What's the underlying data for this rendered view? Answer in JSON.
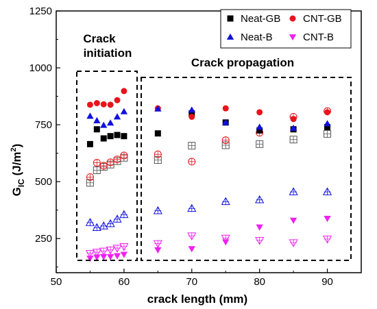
{
  "chart_data": {
    "type": "scatter",
    "xlabel": "crack length (mm)",
    "ylabel_main": "G",
    "ylabel_sub": "IC",
    "ylabel_unit": " (J/m",
    "ylabel_sup": "2",
    "ylabel_close": ")",
    "xlim": [
      50,
      95
    ],
    "ylim": [
      100,
      1250
    ],
    "xticks": [
      50,
      60,
      70,
      80,
      90
    ],
    "yticks": [
      250,
      500,
      750,
      1000,
      1250
    ],
    "grid": false,
    "legend_position": "top-right",
    "annotations": {
      "initiation_line1": "Crack",
      "initiation_line2": "initiation",
      "propagation": "Crack propagation"
    },
    "series": [
      {
        "name": "Neat-GB",
        "marker": "square",
        "filled": true,
        "color": "#000000",
        "x": [
          55,
          56,
          57,
          58,
          59,
          60,
          65,
          70,
          75,
          80,
          85,
          90
        ],
        "y": [
          665,
          730,
          690,
          700,
          705,
          700,
          712,
          800,
          760,
          725,
          730,
          740
        ]
      },
      {
        "name": "CNT-GB",
        "marker": "circle",
        "filled": true,
        "color": "#e8141c",
        "x": [
          55,
          56,
          57,
          58,
          59,
          60,
          65,
          70,
          75,
          80,
          85,
          90
        ],
        "y": [
          838,
          845,
          840,
          838,
          858,
          898,
          822,
          785,
          822,
          805,
          775,
          805
        ]
      },
      {
        "name": "Neat-B",
        "marker": "triangle-up",
        "filled": true,
        "color": "#1010e0",
        "x": [
          55,
          56,
          57,
          58,
          59,
          60,
          65,
          70,
          75,
          80,
          85,
          90
        ],
        "y": [
          788,
          768,
          748,
          758,
          785,
          808,
          820,
          815,
          760,
          740,
          735,
          755
        ]
      },
      {
        "name": "CNT-B",
        "marker": "triangle-down",
        "filled": true,
        "color": "#f020f0",
        "x": [
          55,
          56,
          57,
          58,
          59,
          60,
          65,
          70,
          75,
          80,
          85,
          90
        ],
        "y": [
          163,
          168,
          170,
          170,
          174,
          180,
          200,
          205,
          235,
          300,
          330,
          338
        ]
      },
      {
        "marker": "square",
        "filled": false,
        "color": "#555555",
        "x": [
          55,
          56,
          57,
          58,
          59,
          60,
          65,
          70,
          75,
          80,
          85,
          90
        ],
        "y": [
          495,
          550,
          565,
          575,
          590,
          605,
          595,
          658,
          660,
          665,
          685,
          710
        ]
      },
      {
        "marker": "circle",
        "filled": false,
        "color": "#e8141c",
        "x": [
          55,
          56,
          57,
          58,
          59,
          60,
          65,
          70,
          75,
          80,
          85,
          90
        ],
        "y": [
          520,
          583,
          570,
          585,
          598,
          615,
          620,
          588,
          682,
          715,
          785,
          810
        ]
      },
      {
        "marker": "triangle-up",
        "filled": false,
        "color": "#1010e0",
        "x": [
          55,
          56,
          57,
          58,
          59,
          60,
          65,
          70,
          75,
          80,
          85,
          90
        ],
        "y": [
          320,
          298,
          305,
          315,
          335,
          355,
          372,
          382,
          412,
          420,
          455,
          455
        ]
      },
      {
        "marker": "triangle-down",
        "filled": false,
        "color": "#f020f0",
        "x": [
          55,
          56,
          57,
          58,
          59,
          60,
          65,
          70,
          75,
          80,
          85,
          90
        ],
        "y": [
          185,
          190,
          195,
          200,
          208,
          215,
          228,
          262,
          252,
          242,
          232,
          248
        ]
      }
    ]
  }
}
